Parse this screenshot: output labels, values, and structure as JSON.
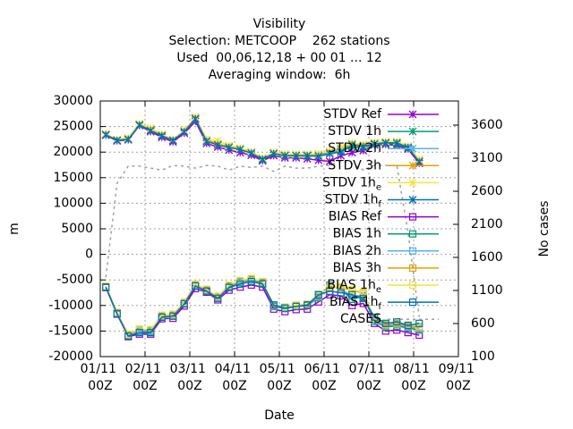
{
  "chart_data": {
    "type": "line",
    "title": [
      "Visibility",
      "Selection: METCOOP    262 stations",
      "Used  00,06,12,18 + 00 01 ... 12",
      "Averaging window:  6h"
    ],
    "xlabel": "Date",
    "ylabel": "m",
    "y2label": "No cases",
    "x": [
      3,
      9,
      15,
      21,
      27,
      33,
      39,
      45,
      51,
      57,
      63,
      69,
      75,
      81,
      87,
      93,
      99,
      105,
      111,
      117,
      123,
      129,
      135,
      141,
      147,
      153,
      159,
      165,
      171
    ],
    "xlim": [
      0,
      192
    ],
    "xticks": [
      {
        "value": 0,
        "label": "01/11 00Z"
      },
      {
        "value": 24,
        "label": "02/11 00Z"
      },
      {
        "value": 48,
        "label": "03/11 00Z"
      },
      {
        "value": 72,
        "label": "04/11 00Z"
      },
      {
        "value": 96,
        "label": "05/11 00Z"
      },
      {
        "value": 120,
        "label": "06/11 00Z"
      },
      {
        "value": 144,
        "label": "07/11 00Z"
      },
      {
        "value": 168,
        "label": "08/11 00Z"
      },
      {
        "value": 192,
        "label": "09/11 00Z"
      }
    ],
    "ylim": [
      -20000,
      30000
    ],
    "yticks": [
      -20000,
      -15000,
      -10000,
      -5000,
      0,
      5000,
      10000,
      15000,
      20000,
      25000,
      30000
    ],
    "y2lim": [
      100,
      3965
    ],
    "y2ticks": [
      100,
      600,
      1100,
      1600,
      2100,
      2600,
      3100,
      3600
    ],
    "grid": true,
    "legend": "top-right",
    "series": [
      {
        "name": "STDV Ref",
        "color": "#9400d3",
        "marker": "x",
        "values": [
          23300,
          22200,
          22400,
          25200,
          24000,
          22900,
          22000,
          23700,
          26000,
          21700,
          21000,
          20400,
          19900,
          19400,
          18300,
          19300,
          18900,
          18900,
          18700,
          18400,
          18200,
          19300,
          19900,
          20300,
          21400,
          21500,
          21300,
          20600,
          17800
        ]
      },
      {
        "name": "STDV 1h",
        "color": "#009e73",
        "marker": "x",
        "values": [
          23400,
          22300,
          22500,
          25300,
          24300,
          23200,
          22300,
          24000,
          26400,
          22100,
          21500,
          21000,
          20500,
          19800,
          18500,
          19700,
          19300,
          19300,
          19200,
          19300,
          19700,
          20300,
          21000,
          20900,
          21500,
          21700,
          21600,
          20800,
          18200
        ]
      },
      {
        "name": "STDV 2h",
        "color": "#56b4e9",
        "marker": "x",
        "values": [
          23500,
          22400,
          22600,
          25400,
          24300,
          23300,
          22300,
          24000,
          26500,
          22200,
          21500,
          21000,
          20600,
          19900,
          18700,
          19800,
          19400,
          19400,
          19400,
          19400,
          19900,
          20500,
          21600,
          21300,
          21700,
          21900,
          21900,
          21000,
          18300
        ]
      },
      {
        "name": "STDV 3h",
        "color": "#e69f00",
        "marker": "x",
        "values": [
          23500,
          22400,
          22700,
          25500,
          24500,
          23400,
          22400,
          24200,
          26700,
          22400,
          21600,
          21100,
          20700,
          20000,
          18800,
          19900,
          19500,
          19500,
          19500,
          19600,
          20100,
          20800,
          21700,
          21400,
          21800,
          22000,
          22000,
          21100,
          18500
        ]
      },
      {
        "name": "STDV 1he",
        "color": "#f0e442",
        "marker": "x",
        "values": [
          23600,
          22500,
          22800,
          25600,
          24700,
          23500,
          22500,
          24300,
          26900,
          22500,
          22200,
          21300,
          20800,
          20100,
          18900,
          20000,
          19600,
          19600,
          19600,
          19700,
          20200,
          20900,
          21800,
          21500,
          21900,
          22100,
          22100,
          21200,
          18600
        ]
      },
      {
        "name": "STDV 1hf",
        "color": "#0072b2",
        "marker": "x",
        "values": [
          23400,
          22300,
          22500,
          25300,
          24200,
          23200,
          22300,
          24000,
          26500,
          22100,
          21400,
          20900,
          20500,
          19800,
          18600,
          19700,
          19300,
          19300,
          19300,
          19200,
          19700,
          20000,
          21400,
          21100,
          21600,
          21800,
          21800,
          20900,
          18100
        ]
      },
      {
        "name": "BIAS Ref",
        "color": "#9400d3",
        "marker": "square",
        "values": [
          -6500,
          -11700,
          -16100,
          -15600,
          -15600,
          -12600,
          -12500,
          -10100,
          -6700,
          -7400,
          -8900,
          -7000,
          -6400,
          -6000,
          -6400,
          -10700,
          -11200,
          -10800,
          -10700,
          -9300,
          -7900,
          -8100,
          -10000,
          -9600,
          -13500,
          -15000,
          -14800,
          -15300,
          -15800
        ]
      },
      {
        "name": "BIAS 1h",
        "color": "#009e73",
        "marker": "square",
        "values": [
          -6400,
          -11600,
          -15900,
          -15100,
          -15200,
          -12200,
          -12000,
          -9600,
          -6100,
          -7100,
          -8500,
          -6300,
          -5500,
          -5000,
          -5600,
          -10200,
          -10600,
          -10200,
          -10000,
          -8500,
          -6000,
          -6900,
          -8800,
          -8200,
          -13100,
          -14200,
          -14000,
          -14400,
          -14800
        ]
      },
      {
        "name": "BIAS 2h",
        "color": "#56b4e9",
        "marker": "square",
        "values": [
          -6300,
          -11500,
          -15800,
          -15000,
          -15000,
          -12100,
          -11900,
          -9500,
          -6000,
          -7000,
          -8400,
          -6200,
          -5400,
          -4900,
          -5500,
          -10100,
          -10500,
          -10100,
          -9900,
          -8300,
          -6100,
          -6800,
          -8200,
          -8000,
          -12800,
          -14000,
          -13700,
          -14200,
          -14500
        ]
      },
      {
        "name": "BIAS 3h",
        "color": "#e69f00",
        "marker": "square",
        "values": [
          -6300,
          -11400,
          -15700,
          -14700,
          -14800,
          -12000,
          -11800,
          -9400,
          -5900,
          -6900,
          -8300,
          -6100,
          -5200,
          -4800,
          -5400,
          -10000,
          -10400,
          -10000,
          -9800,
          -8000,
          -6400,
          -6500,
          -7000,
          -7600,
          -12600,
          -13800,
          -13500,
          -14000,
          -14200
        ]
      },
      {
        "name": "BIAS 1he",
        "color": "#f0e442",
        "marker": "square",
        "values": [
          -6200,
          -11300,
          -15600,
          -14600,
          -14700,
          -11900,
          -11700,
          -9300,
          -5800,
          -6800,
          -8200,
          -6000,
          -5100,
          -4700,
          -5300,
          -9900,
          -10300,
          -9900,
          -9700,
          -7800,
          -6700,
          -6300,
          -6900,
          -7400,
          -12500,
          -13600,
          -13300,
          -13800,
          -14000
        ]
      },
      {
        "name": "BIAS 1hf",
        "color": "#0072b2",
        "marker": "square",
        "values": [
          -6400,
          -11600,
          -16000,
          -15300,
          -15300,
          -12300,
          -12100,
          -9700,
          -6200,
          -7200,
          -8600,
          -6500,
          -5800,
          -5300,
          -5800,
          -9900,
          -10500,
          -10200,
          -9900,
          -7900,
          -7200,
          -7500,
          -7900,
          -8600,
          -12300,
          -13500,
          -13200,
          -13900,
          -13500
        ]
      },
      {
        "name": "CASES",
        "color": "#a0a0a0",
        "marker": "none",
        "dashed": true,
        "axis": "y2",
        "values": [
          1300,
          2720,
          2980,
          2980,
          2950,
          2920,
          2990,
          2980,
          2950,
          2990,
          2980,
          2920,
          2980,
          2960,
          2980,
          2900,
          2980,
          2950,
          2950,
          2980,
          2990,
          3060,
          3020,
          2920,
          2990,
          2990,
          2990,
          1980,
          700
        ]
      }
    ]
  }
}
